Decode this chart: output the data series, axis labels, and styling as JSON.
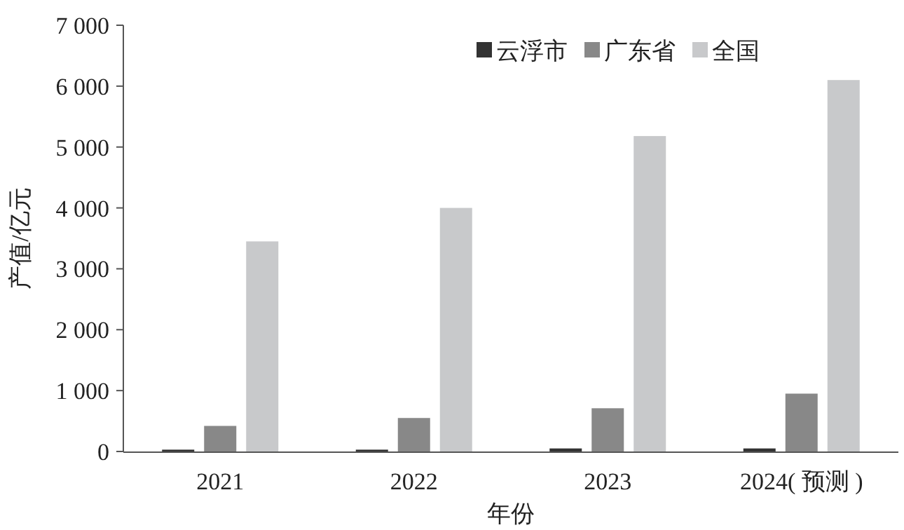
{
  "chart_data": {
    "type": "bar",
    "xlabel": "年份",
    "ylabel": "产值/亿元",
    "categories": [
      "2021",
      "2022",
      "2023",
      "2024( 预测 )"
    ],
    "series": [
      {
        "name": "云浮市",
        "color": "#333333",
        "values": [
          30,
          30,
          50,
          50
        ]
      },
      {
        "name": "广东省",
        "color": "#888888",
        "values": [
          420,
          550,
          710,
          950
        ]
      },
      {
        "name": "全国",
        "color": "#c8c9cb",
        "values": [
          3450,
          4000,
          5180,
          6100
        ]
      }
    ],
    "ylim": [
      0,
      7000
    ],
    "yticks": [
      0,
      {
        "value": 1000,
        "label": "1 000"
      },
      {
        "value": 2000,
        "label": "2 000"
      },
      {
        "value": 3000,
        "label": "3 000"
      },
      {
        "value": 4000,
        "label": "4 000"
      },
      {
        "value": 5000,
        "label": "5 000"
      },
      {
        "value": 6000,
        "label": "6 000"
      },
      {
        "value": 7000,
        "label": "7 000"
      }
    ],
    "legend": "top right"
  }
}
